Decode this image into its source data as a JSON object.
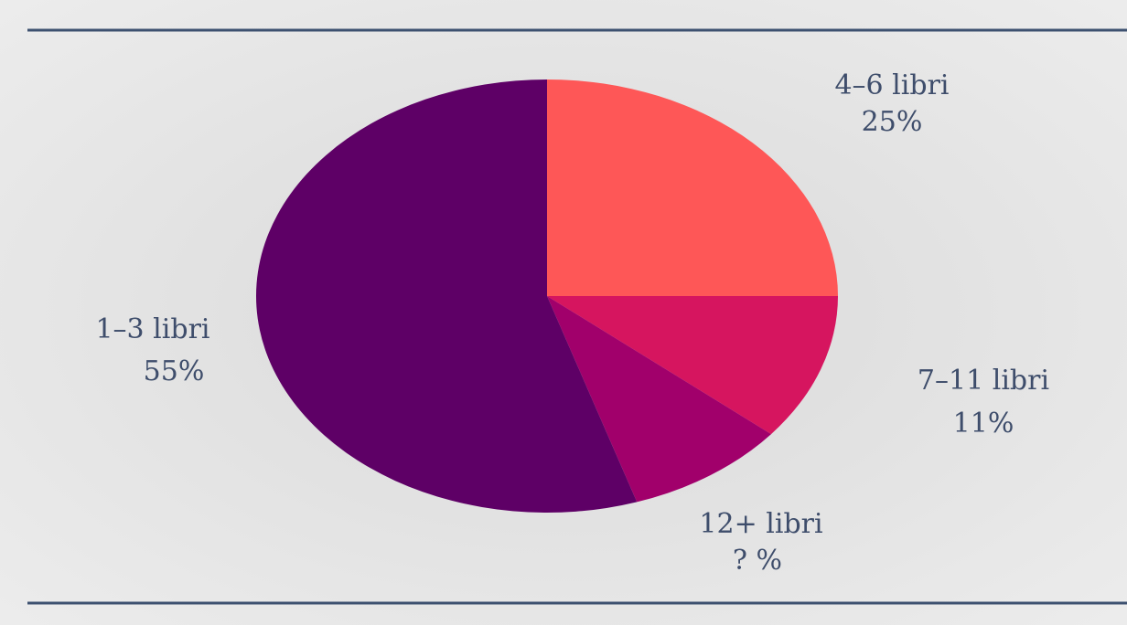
{
  "chart_data": {
    "type": "pie",
    "categories": [
      "4–6 libri",
      "7–11 libri",
      "12+ libri",
      "1–3 libri"
    ],
    "values": [
      25,
      11,
      9,
      55
    ],
    "value_labels": [
      "25%",
      "11%",
      "? %",
      "55%"
    ],
    "colors": [
      "#fe5757",
      "#d6155f",
      "#a1006b",
      "#5e0066"
    ]
  }
}
